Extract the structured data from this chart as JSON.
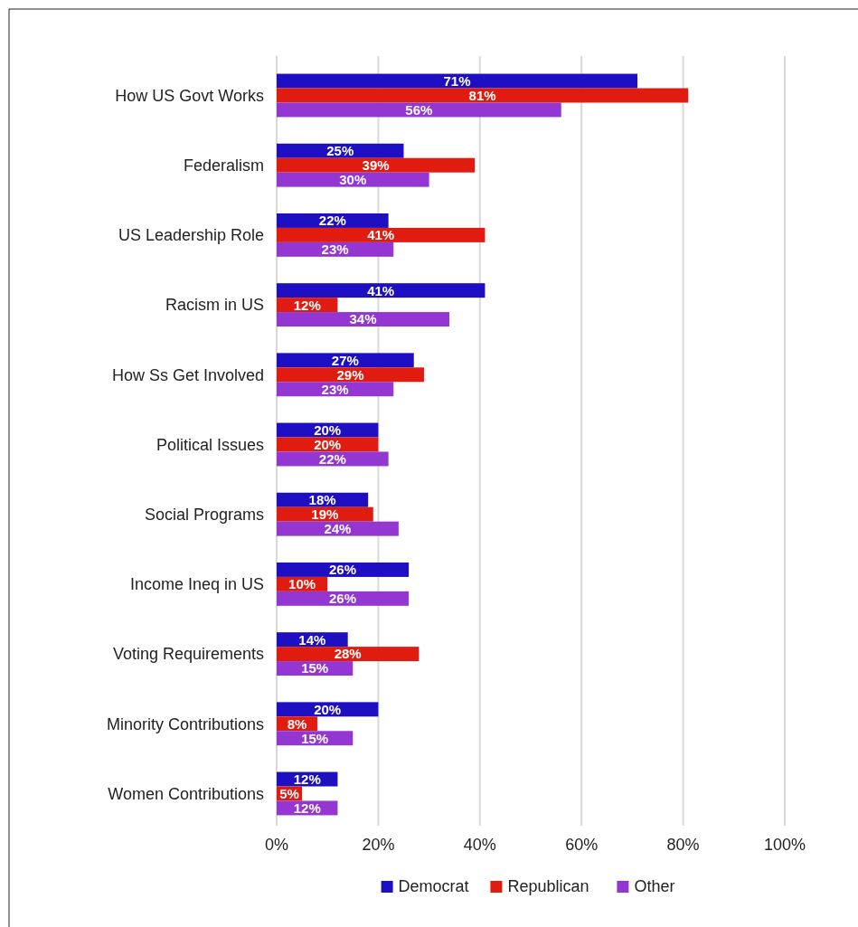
{
  "chart_data": {
    "type": "bar",
    "orientation": "horizontal",
    "categories": [
      "How US Govt Works",
      "Federalism",
      "US Leadership Role",
      "Racism in US",
      "How Ss Get Involved",
      "Political Issues",
      "Social Programs",
      "Income Ineq in US",
      "Voting Requirements",
      "Minority Contributions",
      "Women Contributions"
    ],
    "series": [
      {
        "name": "Democrat",
        "color": "#1e0fc2",
        "values": [
          71,
          25,
          22,
          41,
          27,
          20,
          18,
          26,
          14,
          20,
          12
        ],
        "value_labels": [
          "71%",
          "25%",
          "22%",
          "41%",
          "27%",
          "20%",
          "18%",
          "26%",
          "14%",
          "20%",
          "12%"
        ]
      },
      {
        "name": "Republican",
        "color": "#e01b10",
        "values": [
          81,
          39,
          41,
          12,
          29,
          20,
          19,
          10,
          28,
          8,
          5
        ],
        "value_labels": [
          "81%",
          "39%",
          "41%",
          "12%",
          "29%",
          "20%",
          "19%",
          "10%",
          "28%",
          "8%",
          "5%"
        ]
      },
      {
        "name": "Other",
        "color": "#9437d2",
        "values": [
          56,
          30,
          23,
          34,
          23,
          22,
          24,
          26,
          15,
          15,
          12
        ],
        "value_labels": [
          "56%",
          "30%",
          "23%",
          "34%",
          "23%",
          "22%",
          "24%",
          "26%",
          "15%",
          "15%",
          "12%"
        ]
      }
    ],
    "xlim": [
      0,
      100
    ],
    "xticks": [
      {
        "value": 0,
        "label": "0%"
      },
      {
        "value": 20,
        "label": "20%"
      },
      {
        "value": 40,
        "label": "40%"
      },
      {
        "value": 60,
        "label": "60%"
      },
      {
        "value": 80,
        "label": "80%"
      },
      {
        "value": 100,
        "label": "100%"
      }
    ],
    "grid": "x",
    "legend": "bottom"
  }
}
